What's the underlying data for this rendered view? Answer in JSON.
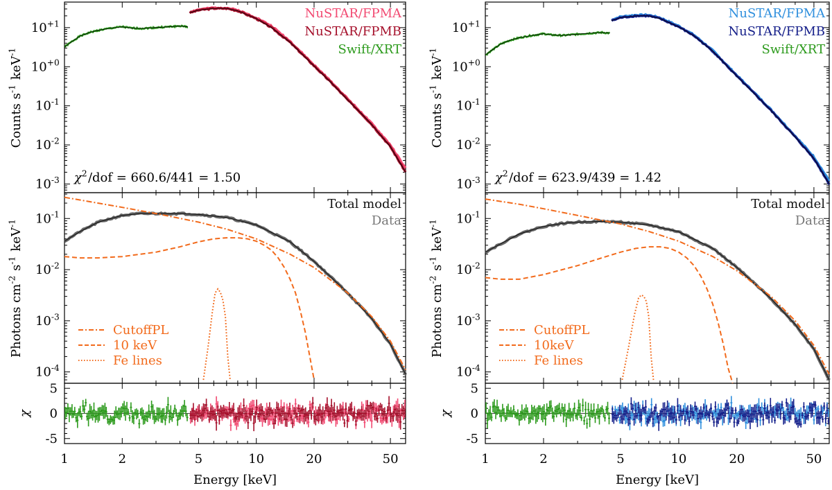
{
  "chart_data": [
    {
      "type": "line",
      "id": "left",
      "xlabel": "Energy [keV]",
      "xlim": [
        1,
        60
      ],
      "x_ticks": [
        1,
        2,
        5,
        10,
        20,
        50
      ],
      "x_tick_labels": [
        "1",
        "2",
        "5",
        "10",
        "20",
        "50"
      ],
      "counts": {
        "ylabel": "Counts s$^{-1}$ keV$^{-1}$",
        "ylim": [
          0.0006,
          45
        ],
        "y_ticks": [
          0.001,
          0.01,
          0.1,
          1,
          10
        ],
        "y_tick_labels": [
          "10$^{-3}$",
          "10$^{-2}$",
          "10$^{-1}$",
          "10$^{+0}$",
          "10$^{+1}$"
        ],
        "legend": [
          {
            "label": "NuSTAR/FPMA",
            "color": "#f24a72"
          },
          {
            "label": "NuSTAR/FPMB",
            "color": "#a5102b"
          },
          {
            "label": "Swift/XRT",
            "color": "#2c9a1c"
          }
        ],
        "annotation": "$χ$$^2$/dof = 660.6/441 = 1.50",
        "series": [
          {
            "name": "Swift/XRT",
            "color": "#2c9a1c",
            "x": [
              1.0,
              1.1,
              1.2,
              1.35,
              1.5,
              1.7,
              1.9,
              2.0,
              2.2,
              2.5,
              3.0,
              3.5,
              4.0,
              4.4
            ],
            "y": [
              3.2,
              4.5,
              6.0,
              7.5,
              8.5,
              9.5,
              10.2,
              10.5,
              9.8,
              9.5,
              10.0,
              10.5,
              11.0,
              10.5
            ]
          },
          {
            "name": "NuSTAR/FPMA",
            "color": "#f24a72",
            "x": [
              4.5,
              5.0,
              6.0,
              7.0,
              8.0,
              10.0,
              12.0,
              15.0,
              20.0,
              25.0,
              30.0,
              35.0,
              40.0,
              50.0,
              60.0
            ],
            "y": [
              25,
              29,
              32,
              32,
              28,
              18,
              11,
              4.5,
              1.1,
              0.38,
              0.15,
              0.07,
              0.035,
              0.01,
              0.0025
            ]
          },
          {
            "name": "NuSTAR/FPMB",
            "color": "#a5102b",
            "x": [
              4.5,
              5.0,
              6.0,
              7.0,
              8.0,
              10.0,
              12.0,
              15.0,
              20.0,
              25.0,
              30.0,
              35.0,
              40.0,
              50.0,
              60.0
            ],
            "y": [
              24,
              28,
              31,
              31,
              27,
              17,
              10,
              4.2,
              1.05,
              0.36,
              0.14,
              0.066,
              0.033,
              0.009,
              0.002
            ]
          }
        ]
      },
      "photons": {
        "ylabel": "Photons  cm$^{-2}$ s$^{-1}$ keV$^{-1}$",
        "ylim": [
          6e-05,
          0.32
        ],
        "y_ticks": [
          0.0001,
          0.001,
          0.01,
          0.1
        ],
        "y_tick_labels": [
          "10$^{-4}$",
          "10$^{-3}$",
          "10$^{-2}$",
          "10$^{-1}$"
        ],
        "legend_top": [
          {
            "label": "Total model",
            "color": "#111111"
          },
          {
            "label": "Data",
            "color": "#777777"
          }
        ],
        "legend_components": [
          {
            "label": "CutoffPL",
            "color": "#f26a1b",
            "dash": "7,3,2,3"
          },
          {
            "label": "10 keV",
            "color": "#f26a1b",
            "dash": "6,3"
          },
          {
            "label": "Fe lines",
            "color": "#f26a1b",
            "dash": "1.5,2.5"
          }
        ],
        "series": [
          {
            "name": "Data",
            "color": "#666666",
            "style": "data",
            "x": [
              1.0,
              1.2,
              1.5,
              2.0,
              2.5,
              3.0,
              4.0,
              5.0,
              7.0,
              10.0,
              15.0,
              20.0,
              30.0,
              40.0,
              50.0,
              60.0
            ],
            "y": [
              0.036,
              0.055,
              0.085,
              0.115,
              0.125,
              0.125,
              0.125,
              0.12,
              0.105,
              0.075,
              0.035,
              0.0145,
              0.0035,
              0.0011,
              0.00035,
              9e-05
            ]
          },
          {
            "name": "Total model",
            "color": "#111111",
            "style": "model",
            "x": [
              1.0,
              1.2,
              1.5,
              2.0,
              2.5,
              3.0,
              4.0,
              5.0,
              7.0,
              10.0,
              15.0,
              20.0,
              30.0,
              40.0,
              50.0,
              60.0
            ],
            "y": [
              0.036,
              0.055,
              0.085,
              0.115,
              0.125,
              0.125,
              0.125,
              0.12,
              0.105,
              0.075,
              0.035,
              0.0145,
              0.0035,
              0.0011,
              0.00035,
              9e-05
            ]
          },
          {
            "name": "CutoffPL",
            "color": "#f26a1b",
            "style": "dashdot",
            "x": [
              1.0,
              1.5,
              2.0,
              3.0,
              5.0,
              7.0,
              10.0,
              15.0,
              20.0,
              30.0,
              40.0,
              50.0,
              60.0
            ],
            "y": [
              0.26,
              0.2,
              0.165,
              0.125,
              0.085,
              0.062,
              0.04,
              0.02,
              0.011,
              0.0035,
              0.0012,
              0.0004,
              0.00011
            ]
          },
          {
            "name": "10 keV",
            "color": "#f26a1b",
            "style": "dashed",
            "x": [
              1.0,
              1.2,
              1.5,
              2.0,
              3.0,
              4.0,
              5.0,
              6.0,
              7.0,
              8.0,
              9.0,
              10.0,
              11.0,
              12.0,
              13.0,
              14.0,
              15.0,
              16.0,
              17.0,
              18.0,
              19.0,
              20.0
            ],
            "y": [
              0.018,
              0.017,
              0.017,
              0.018,
              0.022,
              0.028,
              0.035,
              0.04,
              0.042,
              0.042,
              0.04,
              0.036,
              0.03,
              0.024,
              0.017,
              0.011,
              0.0065,
              0.0035,
              0.0015,
              0.0006,
              0.0002,
              7e-05
            ]
          },
          {
            "name": "Fe lines",
            "color": "#f26a1b",
            "style": "dotted",
            "x": [
              5.3,
              5.6,
              5.9,
              6.1,
              6.3,
              6.5,
              6.7,
              6.9,
              7.1,
              7.3
            ],
            "y": [
              7e-05,
              0.0003,
              0.0015,
              0.0035,
              0.0042,
              0.0036,
              0.0025,
              0.0012,
              0.0002,
              7e-05
            ]
          }
        ]
      },
      "residuals": {
        "ylabel": "$χ$",
        "ylim": [
          -6,
          6
        ],
        "y_ticks": [
          -5,
          0,
          5
        ],
        "y_tick_labels": [
          "-5",
          "0",
          "5"
        ],
        "series": [
          {
            "name": "Swift/XRT",
            "color": "#2c9a1c",
            "x_range": [
              1.0,
              4.4
            ],
            "amplitude": 1.2,
            "seed": 3
          },
          {
            "name": "NuSTAR/FPMA",
            "color": "#f24a72",
            "x_range": [
              4.5,
              60
            ],
            "amplitude": 1.3,
            "seed": 7
          },
          {
            "name": "NuSTAR/FPMB",
            "color": "#a5102b",
            "x_range": [
              4.5,
              60
            ],
            "amplitude": 1.3,
            "seed": 11
          }
        ]
      }
    },
    {
      "type": "line",
      "id": "right",
      "xlabel": "Energy [keV]",
      "xlim": [
        1,
        60
      ],
      "x_ticks": [
        1,
        2,
        5,
        10,
        20,
        50
      ],
      "x_tick_labels": [
        "1",
        "2",
        "5",
        "10",
        "20",
        "50"
      ],
      "counts": {
        "ylabel": "Counts s$^{-1}$ keV$^{-1}$",
        "ylim": [
          0.0006,
          45
        ],
        "y_ticks": [
          0.001,
          0.01,
          0.1,
          1,
          10
        ],
        "y_tick_labels": [
          "10$^{-3}$",
          "10$^{-2}$",
          "10$^{-1}$",
          "10$^{+0}$",
          "10$^{+1}$"
        ],
        "legend": [
          {
            "label": "NuSTAR/FPMA",
            "color": "#2f8fdd"
          },
          {
            "label": "NuSTAR/FPMB",
            "color": "#16208a"
          },
          {
            "label": "Swift/XRT",
            "color": "#2c9a1c"
          }
        ],
        "annotation": "$χ$$^2$/dof = 623.9/439 = 1.42",
        "series": [
          {
            "name": "Swift/XRT",
            "color": "#2c9a1c",
            "x": [
              1.0,
              1.1,
              1.2,
              1.35,
              1.5,
              1.7,
              1.9,
              2.0,
              2.2,
              2.5,
              3.0,
              3.5,
              4.0,
              4.4
            ],
            "y": [
              2.0,
              2.8,
              3.8,
              4.8,
              5.5,
              6.2,
              6.7,
              7.0,
              6.5,
              6.3,
              6.8,
              7.2,
              7.5,
              7.2
            ]
          },
          {
            "name": "NuSTAR/FPMA",
            "color": "#2f8fdd",
            "x": [
              4.5,
              5.0,
              6.0,
              7.0,
              8.0,
              10.0,
              12.0,
              15.0,
              20.0,
              25.0,
              30.0,
              35.0,
              40.0,
              50.0,
              60.0
            ],
            "y": [
              16,
              19,
              21,
              21,
              18,
              11,
              6.5,
              2.6,
              0.6,
              0.2,
              0.08,
              0.035,
              0.017,
              0.005,
              0.0012
            ]
          },
          {
            "name": "NuSTAR/FPMB",
            "color": "#16208a",
            "x": [
              4.5,
              5.0,
              6.0,
              7.0,
              8.0,
              10.0,
              12.0,
              15.0,
              20.0,
              25.0,
              30.0,
              35.0,
              40.0,
              50.0,
              60.0
            ],
            "y": [
              15,
              18,
              20,
              20,
              17,
              10.5,
              6.2,
              2.5,
              0.57,
              0.19,
              0.076,
              0.033,
              0.016,
              0.0045,
              0.001
            ]
          }
        ]
      },
      "photons": {
        "ylabel": "Photons  cm$^{-2}$ s$^{-1}$ keV$^{-1}$",
        "ylim": [
          6e-05,
          0.32
        ],
        "y_ticks": [
          0.0001,
          0.001,
          0.01,
          0.1
        ],
        "y_tick_labels": [
          "10$^{-4}$",
          "10$^{-3}$",
          "10$^{-2}$",
          "10$^{-1}$"
        ],
        "legend_top": [
          {
            "label": "Total model",
            "color": "#111111"
          },
          {
            "label": "Data",
            "color": "#777777"
          }
        ],
        "legend_components": [
          {
            "label": "CutoffPL",
            "color": "#f26a1b",
            "dash": "7,3,2,3"
          },
          {
            "label": "10keV",
            "color": "#f26a1b",
            "dash": "6,3"
          },
          {
            "label": "Fe lines",
            "color": "#f26a1b",
            "dash": "1.5,2.5"
          }
        ],
        "series": [
          {
            "name": "Data",
            "color": "#666666",
            "style": "data",
            "x": [
              1.0,
              1.2,
              1.5,
              2.0,
              2.5,
              3.0,
              4.0,
              5.0,
              7.0,
              10.0,
              15.0,
              20.0,
              30.0,
              40.0,
              50.0,
              60.0
            ],
            "y": [
              0.022,
              0.032,
              0.05,
              0.07,
              0.08,
              0.085,
              0.088,
              0.085,
              0.075,
              0.055,
              0.026,
              0.011,
              0.0027,
              0.00085,
              0.00028,
              7e-05
            ]
          },
          {
            "name": "Total model",
            "color": "#111111",
            "style": "model",
            "x": [
              1.0,
              1.2,
              1.5,
              2.0,
              2.5,
              3.0,
              4.0,
              5.0,
              7.0,
              10.0,
              15.0,
              20.0,
              30.0,
              40.0,
              50.0,
              60.0
            ],
            "y": [
              0.022,
              0.032,
              0.05,
              0.07,
              0.08,
              0.085,
              0.088,
              0.085,
              0.075,
              0.055,
              0.026,
              0.011,
              0.0027,
              0.00085,
              0.00028,
              7e-05
            ]
          },
          {
            "name": "CutoffPL",
            "color": "#f26a1b",
            "style": "dashdot",
            "x": [
              1.0,
              1.5,
              2.0,
              3.0,
              5.0,
              7.0,
              10.0,
              15.0,
              20.0,
              30.0,
              40.0,
              50.0,
              60.0
            ],
            "y": [
              0.24,
              0.19,
              0.155,
              0.115,
              0.078,
              0.056,
              0.036,
              0.018,
              0.0095,
              0.003,
              0.001,
              0.00033,
              9e-05
            ]
          },
          {
            "name": "10keV",
            "color": "#f26a1b",
            "style": "dashed",
            "x": [
              1.0,
              1.2,
              1.5,
              2.0,
              3.0,
              4.0,
              5.0,
              6.0,
              7.0,
              8.0,
              9.0,
              10.0,
              11.0,
              12.0,
              13.0,
              14.0,
              15.0,
              16.0,
              17.0,
              18.0,
              19.0
            ],
            "y": [
              0.007,
              0.0065,
              0.0065,
              0.008,
              0.012,
              0.017,
              0.022,
              0.026,
              0.028,
              0.028,
              0.026,
              0.022,
              0.017,
              0.012,
              0.0075,
              0.0042,
              0.0021,
              0.0009,
              0.00035,
              0.00012,
              5e-05
            ]
          },
          {
            "name": "Fe lines",
            "color": "#f26a1b",
            "style": "dotted",
            "x": [
              5.1,
              5.5,
              5.9,
              6.2,
              6.4,
              6.6,
              6.8,
              7.0,
              7.2,
              7.4
            ],
            "y": [
              7e-05,
              0.0003,
              0.0013,
              0.0028,
              0.0032,
              0.003,
              0.0024,
              0.0012,
              0.0002,
              7e-05
            ]
          }
        ]
      },
      "residuals": {
        "ylabel": "$χ$",
        "ylim": [
          -6,
          6
        ],
        "y_ticks": [
          -5,
          0,
          5
        ],
        "y_tick_labels": [
          "-5",
          "0",
          "5"
        ],
        "series": [
          {
            "name": "Swift/XRT",
            "color": "#2c9a1c",
            "x_range": [
              1.0,
              4.4
            ],
            "amplitude": 1.1,
            "seed": 5
          },
          {
            "name": "NuSTAR/FPMA",
            "color": "#2f8fdd",
            "x_range": [
              4.5,
              60
            ],
            "amplitude": 1.3,
            "seed": 13
          },
          {
            "name": "NuSTAR/FPMB",
            "color": "#16208a",
            "x_range": [
              4.5,
              60
            ],
            "amplitude": 1.3,
            "seed": 17
          }
        ]
      }
    }
  ]
}
